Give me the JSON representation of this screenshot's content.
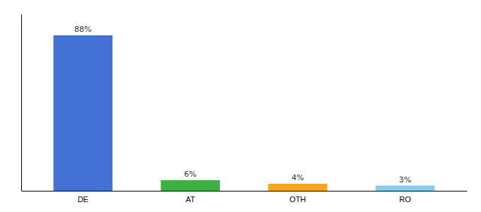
{
  "chart_data": {
    "type": "bar",
    "categories": [
      "DE",
      "AT",
      "OTH",
      "RO"
    ],
    "values": [
      88,
      6,
      4,
      3
    ],
    "value_labels": [
      "88%",
      "6%",
      "4%",
      "3%"
    ],
    "colors": [
      "#4472d4",
      "#3cb043",
      "#f5a623",
      "#87ceeb"
    ],
    "ylim": [
      0,
      100
    ],
    "data_labels": true,
    "tick_labels": "x",
    "grid": false
  }
}
